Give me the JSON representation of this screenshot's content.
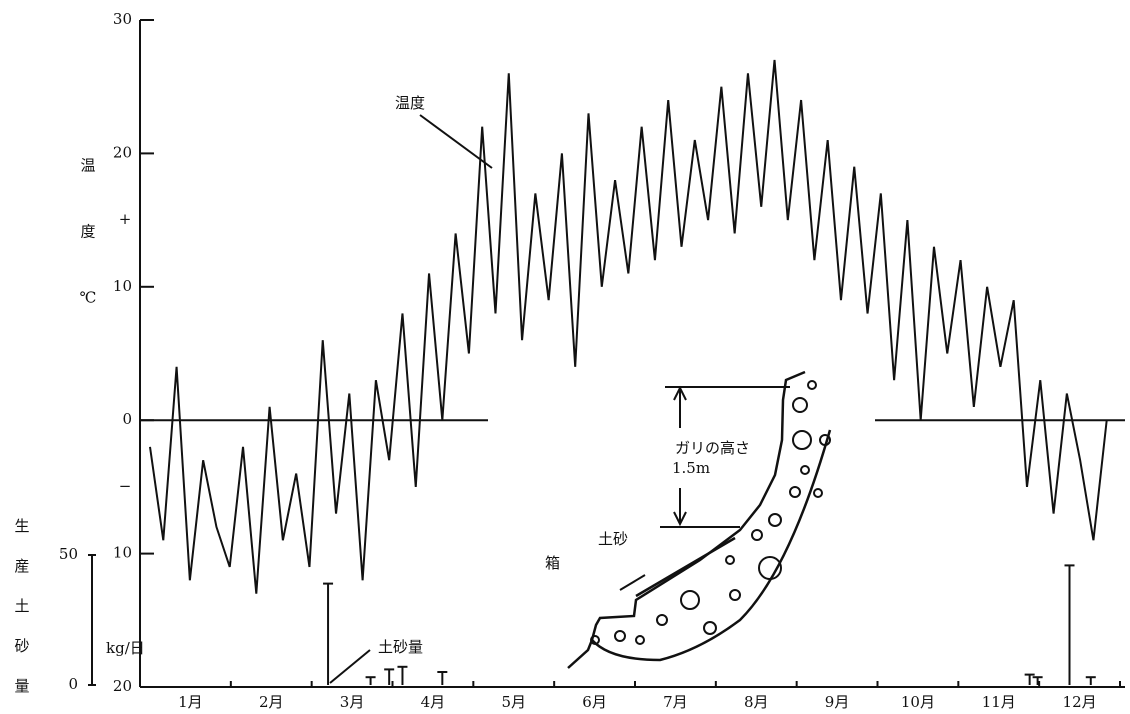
{
  "chart_data": {
    "type": "line",
    "categories": [
      "1月",
      "2月",
      "3月",
      "4月",
      "5月",
      "6月",
      "7月",
      "8月",
      "9月",
      "10月",
      "11月",
      "12月"
    ],
    "xlim": [
      0,
      365
    ],
    "ylim": [
      -20,
      30
    ],
    "yticks": [
      {
        "value": -20,
        "label": "20"
      },
      {
        "value": -10,
        "label": "10"
      },
      0,
      10,
      20,
      30
    ],
    "sign_labels": [
      {
        "value": 15,
        "label": "+"
      },
      {
        "value": -5,
        "label": "−"
      }
    ],
    "y_label_chars": [
      "温",
      "度",
      "℃"
    ],
    "y2lim": [
      0,
      50
    ],
    "y2ticks": [
      0,
      50
    ],
    "y2_label_chars": [
      "生",
      "産",
      "土",
      "砂",
      "量"
    ],
    "y2_unit": "kg/日",
    "series": [
      {
        "name": "温度",
        "color": "#111111",
        "x": [
          0,
          5,
          10,
          15,
          20,
          25,
          30,
          35,
          40,
          45,
          50,
          55,
          60,
          65,
          70,
          75,
          80,
          85,
          90,
          95,
          100,
          105,
          110,
          115,
          120,
          125,
          130,
          135,
          140,
          145,
          150,
          155,
          160,
          165,
          170,
          175,
          180,
          185,
          190,
          195,
          200,
          205,
          210,
          215,
          220,
          225,
          230,
          235,
          240,
          245,
          250,
          255,
          260,
          265,
          270,
          275,
          280,
          285,
          290,
          295,
          300,
          305,
          310,
          315,
          320,
          325,
          330,
          335,
          340,
          345,
          350,
          355,
          360
        ],
        "values": [
          -2,
          -9,
          4,
          -12,
          -3,
          -8,
          -11,
          -2,
          -13,
          1,
          -9,
          -4,
          -11,
          6,
          -7,
          2,
          -12,
          3,
          -3,
          8,
          -5,
          11,
          0,
          14,
          5,
          22,
          8,
          26,
          6,
          17,
          9,
          20,
          4,
          23,
          10,
          18,
          11,
          22,
          12,
          24,
          13,
          21,
          15,
          25,
          14,
          26,
          16,
          27,
          15,
          24,
          12,
          21,
          9,
          19,
          8,
          17,
          3,
          15,
          0,
          13,
          5,
          12,
          1,
          10,
          4,
          9,
          -5,
          3,
          -7,
          2,
          -3,
          -9,
          0
        ]
      },
      {
        "name": "土砂量",
        "color": "#111111",
        "axis": "y2",
        "x": [
          67,
          83,
          90,
          95,
          110,
          331,
          334,
          346,
          354
        ],
        "values": [
          39,
          3,
          6,
          7,
          5,
          4,
          3,
          46,
          3
        ]
      }
    ],
    "annotations": {
      "gully_height": "ガリの高さ",
      "height_value": "1.5m",
      "sediment": "土砂",
      "box": "箱"
    }
  }
}
